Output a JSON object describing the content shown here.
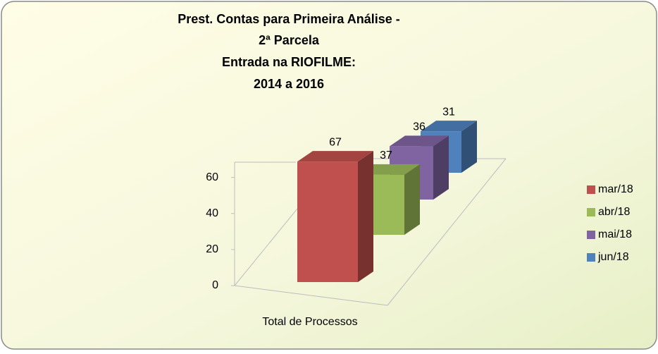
{
  "chart_data": {
    "type": "bar3d",
    "title": [
      "Prest. Contas para Primeira Análise  -",
      "2ª Parcela",
      "Entrada na RIOFILME:",
      "2014 a 2016"
    ],
    "categories": [
      "Total de Processos"
    ],
    "series": [
      {
        "name": "mar/18",
        "color": "#c0504d",
        "values": [
          67
        ]
      },
      {
        "name": "abr/18",
        "color": "#9bbb59",
        "values": [
          37
        ]
      },
      {
        "name": "mai/18",
        "color": "#8064a2",
        "values": [
          36
        ]
      },
      {
        "name": "jun/18",
        "color": "#4f81bd",
        "values": [
          31
        ]
      }
    ],
    "ylim": [
      0,
      70
    ],
    "yticks": [
      0,
      20,
      40,
      60
    ],
    "legend": "right"
  }
}
